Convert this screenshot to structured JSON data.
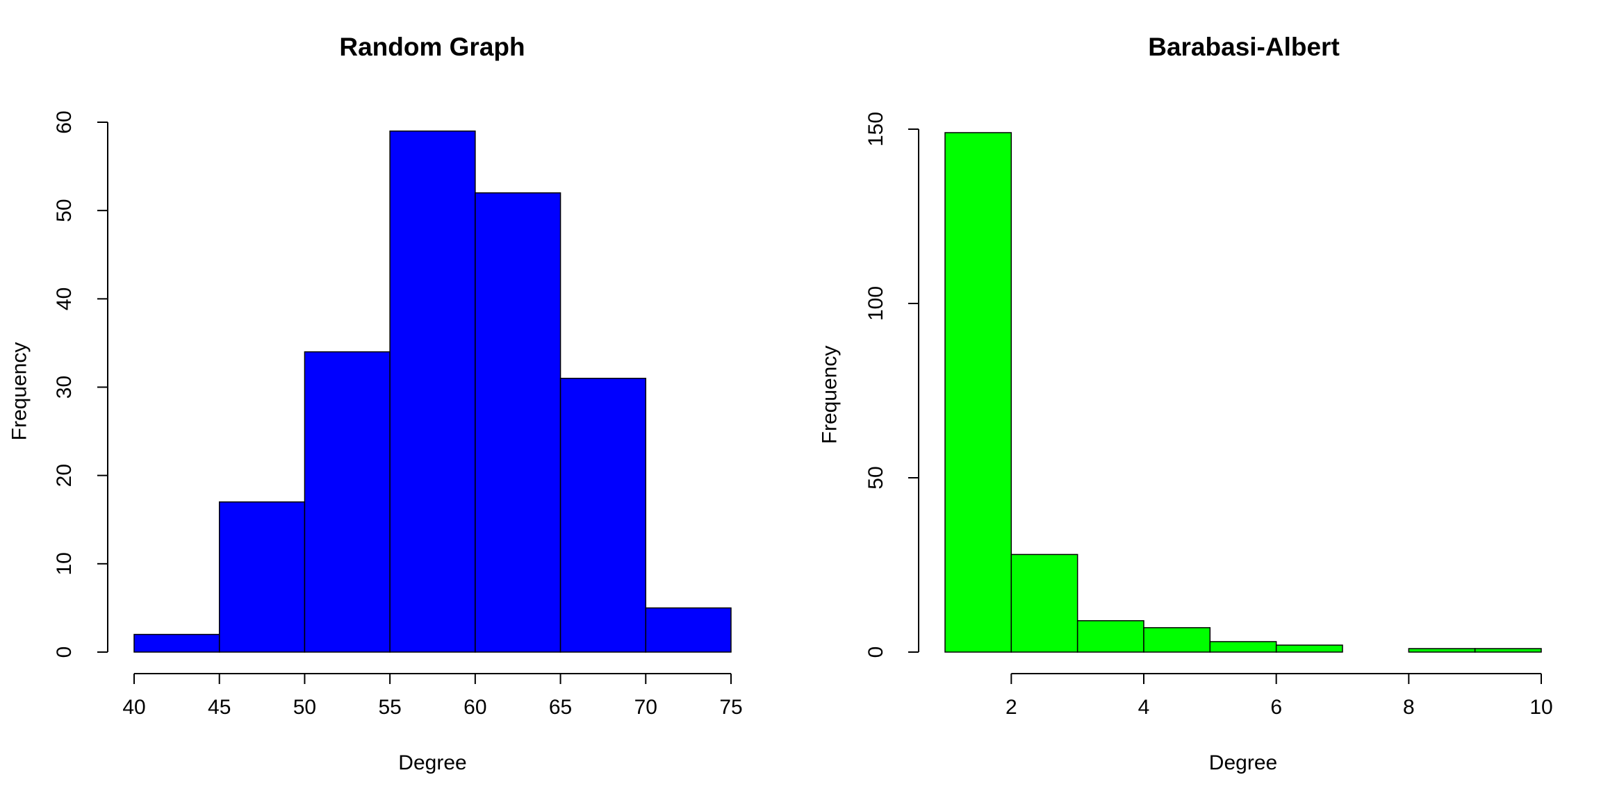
{
  "chart_data": [
    {
      "type": "bar",
      "title": "Random Graph",
      "xlabel": "Degree",
      "ylabel": "Frequency",
      "bin_edges": [
        40,
        45,
        50,
        55,
        60,
        65,
        70,
        75
      ],
      "values": [
        2,
        17,
        34,
        59,
        52,
        31,
        5
      ],
      "xlim": [
        40,
        75
      ],
      "ylim": [
        0,
        60
      ],
      "x_ticks": [
        40,
        45,
        50,
        55,
        60,
        65,
        70,
        75
      ],
      "y_ticks": [
        0,
        10,
        20,
        30,
        40,
        50,
        60
      ],
      "color": "#0000ff",
      "grid": false
    },
    {
      "type": "bar",
      "title": "Barabasi-Albert",
      "xlabel": "Degree",
      "ylabel": "Frequency",
      "bin_edges": [
        1,
        2,
        3,
        4,
        5,
        6,
        7,
        8,
        9,
        10
      ],
      "values": [
        149,
        28,
        9,
        7,
        3,
        2,
        0,
        1,
        1
      ],
      "xlim": [
        1,
        10
      ],
      "ylim": [
        0,
        150
      ],
      "x_ticks": [
        2,
        4,
        6,
        8,
        10
      ],
      "y_ticks": [
        0,
        50,
        100,
        150
      ],
      "color": "#00ff00",
      "grid": false
    }
  ]
}
